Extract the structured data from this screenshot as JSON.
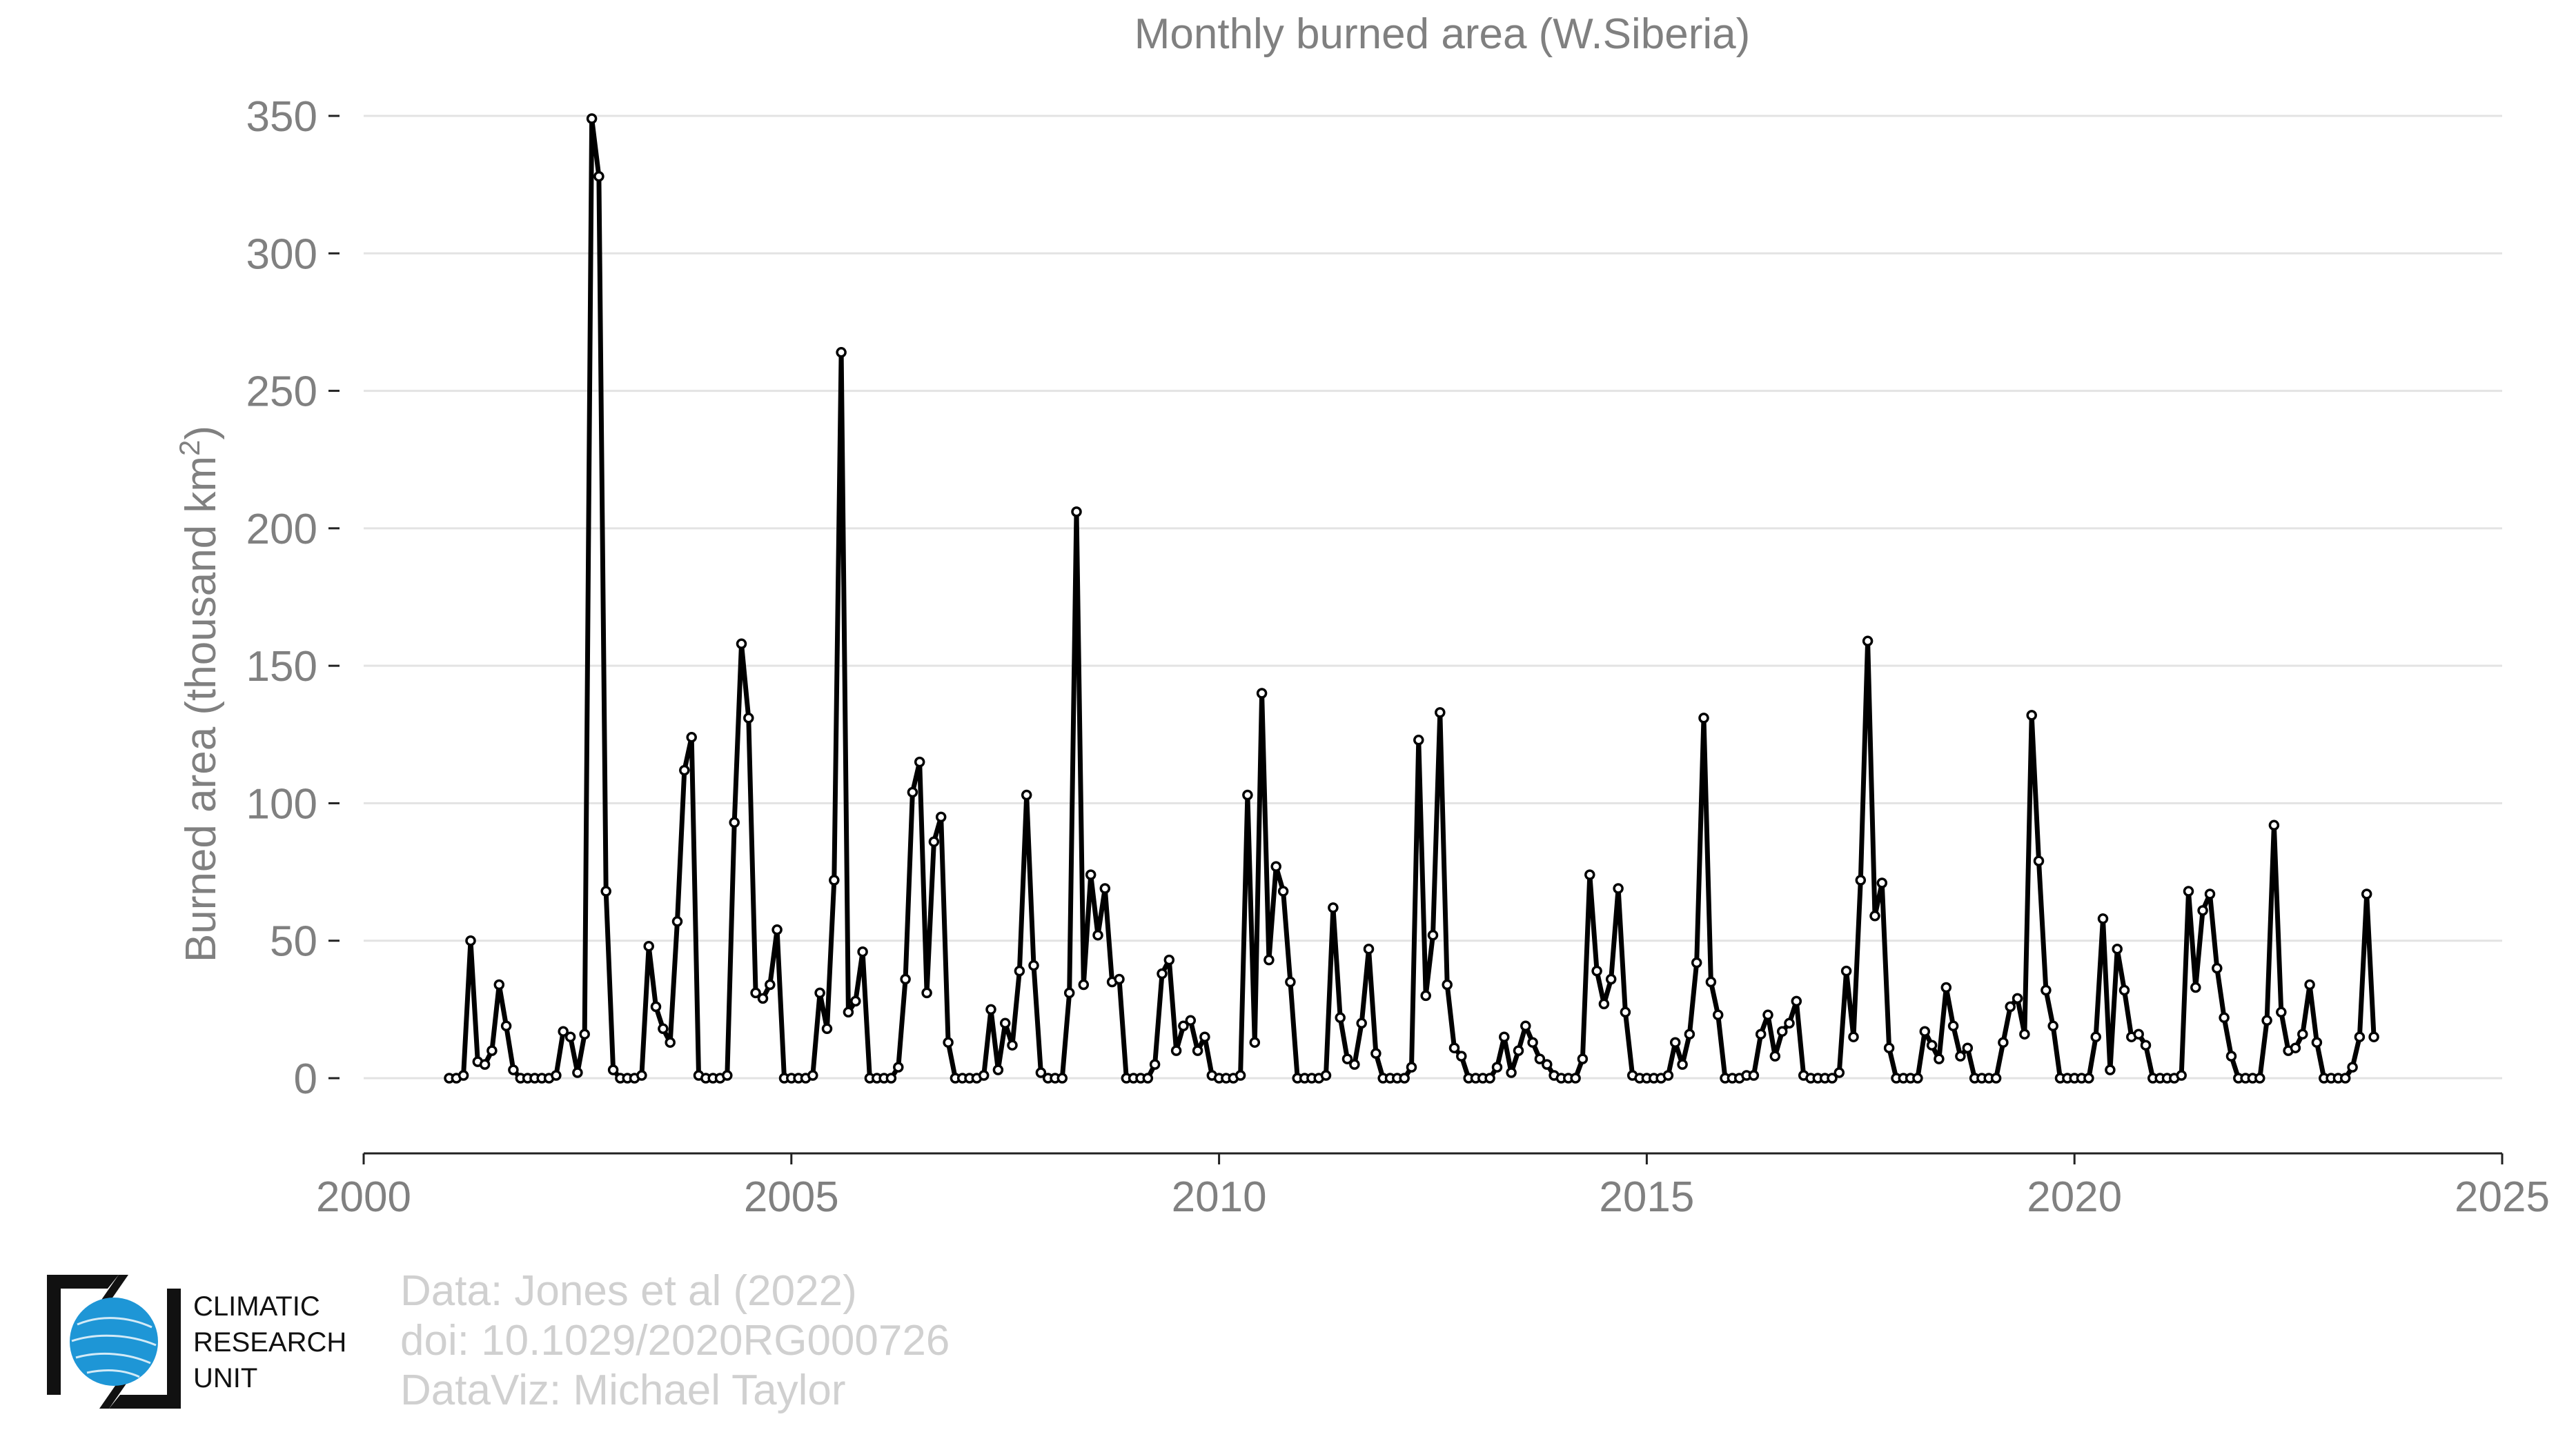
{
  "chart_data": {
    "type": "line",
    "title": "Monthly burned area (W.Siberia)",
    "xlabel": "",
    "ylabel": "Burned area (thousand km²)",
    "xlim": [
      2000,
      2025
    ],
    "ylim": [
      -27,
      350
    ],
    "x_ticks": [
      2000,
      2005,
      2010,
      2015,
      2020,
      2025
    ],
    "y_ticks": [
      0,
      50,
      100,
      150,
      200,
      250,
      300,
      350
    ],
    "grid": "horizontal",
    "legend": "none",
    "line_color": "#000000",
    "marker_fill": "#ffffff",
    "series": [
      {
        "start_year": 2001,
        "start_month": 1,
        "values": [
          0,
          0,
          1,
          50,
          6,
          5,
          10,
          34,
          19,
          3,
          0,
          0,
          0,
          0,
          0,
          1,
          17,
          15,
          2,
          16,
          349,
          328,
          68,
          3,
          0,
          0,
          0,
          1,
          48,
          26,
          18,
          13,
          57,
          112,
          124,
          1,
          0,
          0,
          0,
          1,
          93,
          158,
          131,
          31,
          29,
          34,
          54,
          0,
          0,
          0,
          0,
          1,
          31,
          18,
          72,
          264,
          24,
          28,
          46,
          0,
          0,
          0,
          0,
          4,
          36,
          104,
          115,
          31,
          86,
          95,
          13,
          0,
          0,
          0,
          0,
          1,
          25,
          3,
          20,
          12,
          39,
          103,
          41,
          2,
          0,
          0,
          0,
          31,
          206,
          34,
          74,
          52,
          69,
          35,
          36,
          0,
          0,
          0,
          0,
          5,
          38,
          43,
          10,
          19,
          21,
          10,
          15,
          1,
          0,
          0,
          0,
          1,
          103,
          13,
          140,
          43,
          77,
          68,
          35,
          0,
          0,
          0,
          0,
          1,
          62,
          22,
          7,
          5,
          20,
          47,
          9,
          0,
          0,
          0,
          0,
          4,
          123,
          30,
          52,
          133,
          34,
          11,
          8,
          0,
          0,
          0,
          0,
          4,
          15,
          2,
          10,
          19,
          13,
          7,
          5,
          1,
          0,
          0,
          0,
          7,
          74,
          39,
          27,
          36,
          69,
          24,
          1,
          0,
          0,
          0,
          0,
          1,
          13,
          5,
          16,
          42,
          131,
          35,
          23,
          0,
          0,
          0,
          1,
          1,
          16,
          23,
          8,
          17,
          20,
          28,
          1,
          0,
          0,
          0,
          0,
          2,
          39,
          15,
          72,
          159,
          59,
          71,
          11,
          0,
          0,
          0,
          0,
          17,
          12,
          7,
          33,
          19,
          8,
          11,
          0,
          0,
          0,
          0,
          13,
          26,
          29,
          16,
          132,
          79,
          32,
          19,
          0,
          0,
          0,
          0,
          0,
          15,
          58,
          3,
          47,
          32,
          15,
          16,
          12,
          0,
          0,
          0,
          0,
          1,
          68,
          33,
          61,
          67,
          40,
          22,
          8,
          0,
          0,
          0,
          0,
          21,
          92,
          24,
          10,
          11,
          16,
          34,
          13,
          0,
          0,
          0,
          0,
          4,
          15,
          67,
          15
        ]
      }
    ]
  },
  "credits": {
    "line1": "Data: Jones et al (2022)",
    "line2": "doi: 10.1029/2020RG000726",
    "line3": "DataViz: Michael Taylor"
  },
  "logo": {
    "line1": "CLIMATIC",
    "line2": "RESEARCH",
    "line3": "UNIT",
    "globe_color": "#1e96d6"
  }
}
